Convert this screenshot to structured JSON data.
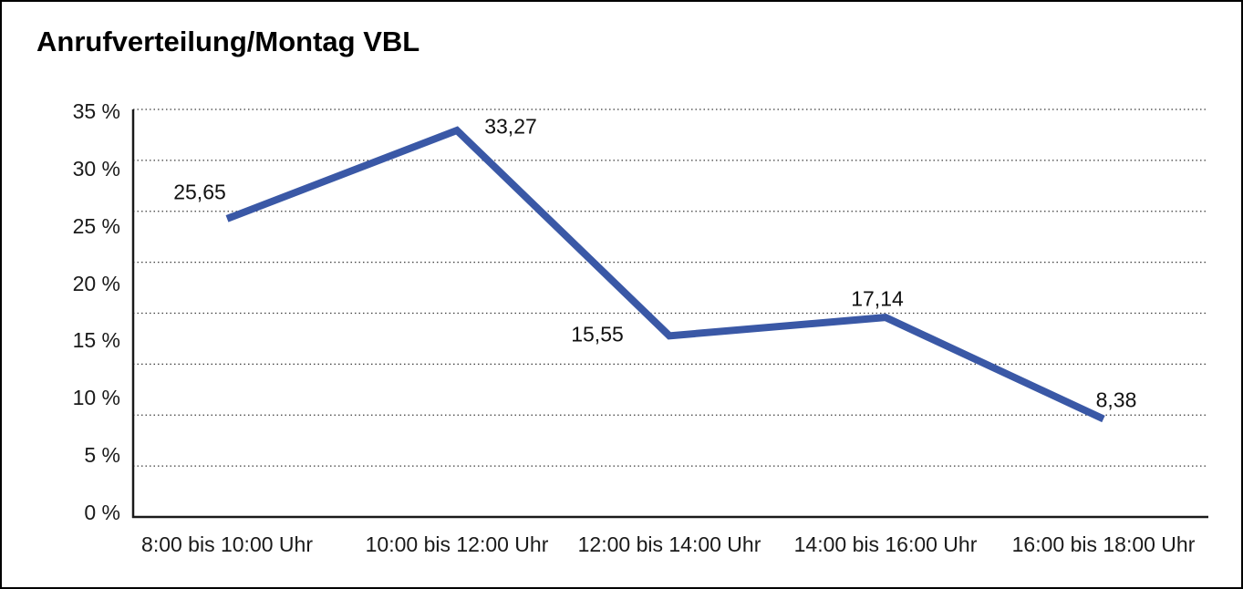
{
  "chart_data": {
    "type": "line",
    "title": "Anrufverteilung/Montag VBL",
    "categories": [
      "8:00 bis 10:00 Uhr",
      "10:00 bis 12:00 Uhr",
      "12:00 bis 14:00 Uhr",
      "14:00 bis 16:00 Uhr",
      "16:00 bis 18:00 Uhr"
    ],
    "values": [
      25.65,
      33.27,
      15.55,
      17.14,
      8.38
    ],
    "value_labels": [
      "25,65",
      "33,27",
      "15,55",
      "17,14",
      "8,38"
    ],
    "y_tick_labels": [
      "35 %",
      "30 %",
      "25 %",
      "20 %",
      "15 %",
      "10 %",
      "5 %",
      "0 %"
    ],
    "ylim": [
      0,
      35
    ],
    "y_tick_step": 5,
    "xlabel": "",
    "ylabel": "",
    "legend": "none",
    "grid": "horizontal-dotted",
    "line_color": "#3A58A6",
    "axis_color": "#1a1a1a",
    "grid_color": "#3c3c3c",
    "background_color": "#ffffff",
    "border_color": "#000000"
  }
}
